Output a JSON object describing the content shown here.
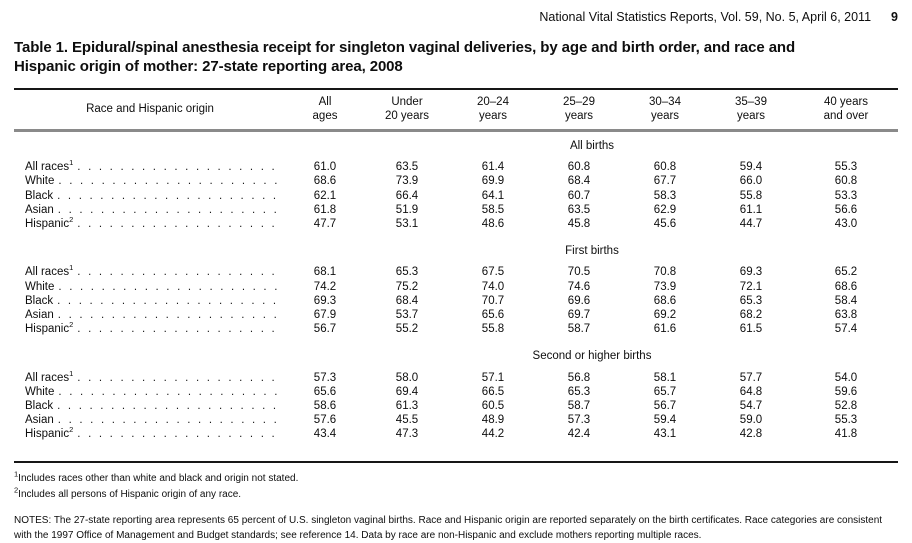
{
  "page_header": {
    "journal_line": "National Vital Statistics Reports, Vol. 59, No. 5, April 6, 2011",
    "page_number": "9"
  },
  "table_title": "Table 1. Epidural/spinal anesthesia receipt for singleton vaginal deliveries, by age and birth order, and race and Hispanic origin of mother: 27-state reporting area, 2008",
  "table": {
    "stub_header": "Race and Hispanic origin",
    "column_headers": [
      [
        "All",
        "ages"
      ],
      [
        "Under",
        "20 years"
      ],
      [
        "20–24",
        "years"
      ],
      [
        "25–29",
        "years"
      ],
      [
        "30–34",
        "years"
      ],
      [
        "35–39",
        "years"
      ],
      [
        "40 years",
        "and over"
      ]
    ],
    "sections": [
      {
        "label": "All births",
        "rows": [
          {
            "label": "All races",
            "sup": "1",
            "values": [
              "61.0",
              "63.5",
              "61.4",
              "60.8",
              "60.8",
              "59.4",
              "55.3"
            ]
          },
          {
            "label": "White",
            "sup": "",
            "values": [
              "68.6",
              "73.9",
              "69.9",
              "68.4",
              "67.7",
              "66.0",
              "60.8"
            ]
          },
          {
            "label": "Black",
            "sup": "",
            "values": [
              "62.1",
              "66.4",
              "64.1",
              "60.7",
              "58.3",
              "55.8",
              "53.3"
            ]
          },
          {
            "label": "Asian",
            "sup": "",
            "values": [
              "61.8",
              "51.9",
              "58.5",
              "63.5",
              "62.9",
              "61.1",
              "56.6"
            ]
          },
          {
            "label": "Hispanic",
            "sup": "2",
            "values": [
              "47.7",
              "53.1",
              "48.6",
              "45.8",
              "45.6",
              "44.7",
              "43.0"
            ]
          }
        ]
      },
      {
        "label": "First births",
        "rows": [
          {
            "label": "All races",
            "sup": "1",
            "values": [
              "68.1",
              "65.3",
              "67.5",
              "70.5",
              "70.8",
              "69.3",
              "65.2"
            ]
          },
          {
            "label": "White",
            "sup": "",
            "values": [
              "74.2",
              "75.2",
              "74.0",
              "74.6",
              "73.9",
              "72.1",
              "68.6"
            ]
          },
          {
            "label": "Black",
            "sup": "",
            "values": [
              "69.3",
              "68.4",
              "70.7",
              "69.6",
              "68.6",
              "65.3",
              "58.4"
            ]
          },
          {
            "label": "Asian",
            "sup": "",
            "values": [
              "67.9",
              "53.7",
              "65.6",
              "69.7",
              "69.2",
              "68.2",
              "63.8"
            ]
          },
          {
            "label": "Hispanic",
            "sup": "2",
            "values": [
              "56.7",
              "55.2",
              "55.8",
              "58.7",
              "61.6",
              "61.5",
              "57.4"
            ]
          }
        ]
      },
      {
        "label": "Second or higher births",
        "rows": [
          {
            "label": "All races",
            "sup": "1",
            "values": [
              "57.3",
              "58.0",
              "57.1",
              "56.8",
              "58.1",
              "57.7",
              "54.0"
            ]
          },
          {
            "label": "White",
            "sup": "",
            "values": [
              "65.6",
              "69.4",
              "66.5",
              "65.3",
              "65.7",
              "64.8",
              "59.6"
            ]
          },
          {
            "label": "Black",
            "sup": "",
            "values": [
              "58.6",
              "61.3",
              "60.5",
              "58.7",
              "56.7",
              "54.7",
              "52.8"
            ]
          },
          {
            "label": "Asian",
            "sup": "",
            "values": [
              "57.6",
              "45.5",
              "48.9",
              "57.3",
              "59.4",
              "59.0",
              "55.3"
            ]
          },
          {
            "label": "Hispanic",
            "sup": "2",
            "values": [
              "43.4",
              "47.3",
              "44.2",
              "42.4",
              "43.1",
              "42.8",
              "41.8"
            ]
          }
        ]
      }
    ]
  },
  "footnotes": [
    {
      "sup": "1",
      "text": "Includes races other than white and black and origin not stated."
    },
    {
      "sup": "2",
      "text": "Includes all persons of Hispanic origin of any race."
    }
  ],
  "notes_text": "NOTES: The 27-state reporting area represents 65 percent of U.S. singleton vaginal births. Race and Hispanic origin are reported separately on the birth certificates. Race categories are consistent with the 1997 Office of Management and Budget standards; see reference 14. Data by race are non-Hispanic and exclude mothers reporting multiple races."
}
